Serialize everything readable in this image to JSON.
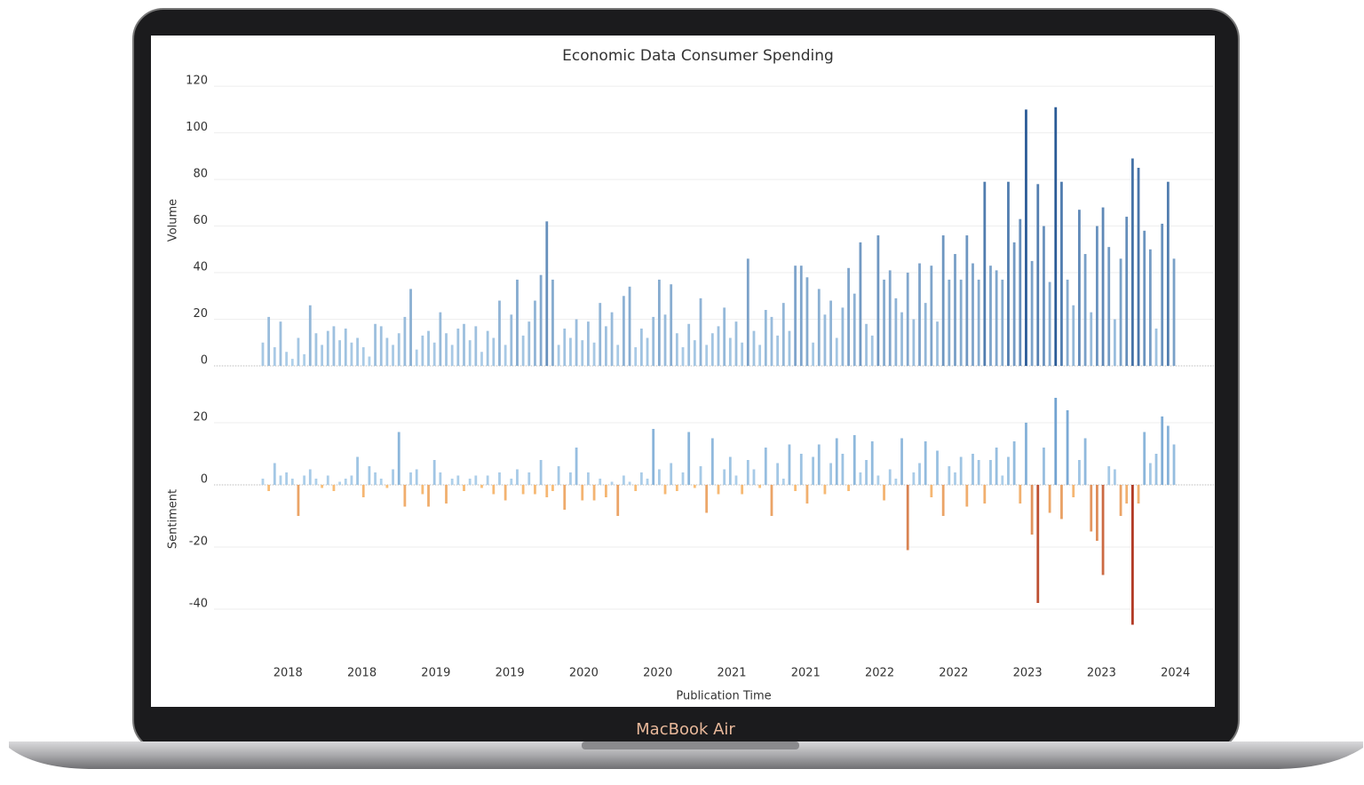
{
  "device_label": "MacBook Air",
  "chart_data": {
    "type": "bar",
    "title": "Economic Data  Consumer Spending",
    "xlabel": "Publication Time",
    "xlim": [
      2017.5,
      2024.26
    ],
    "xticks": [
      {
        "value": 2018.0,
        "label": "2018"
      },
      {
        "value": 2018.5,
        "label": "2018"
      },
      {
        "value": 2019.0,
        "label": "2019"
      },
      {
        "value": 2019.5,
        "label": "2019"
      },
      {
        "value": 2020.0,
        "label": "2020"
      },
      {
        "value": 2020.5,
        "label": "2020"
      },
      {
        "value": 2021.0,
        "label": "2021"
      },
      {
        "value": 2021.5,
        "label": "2021"
      },
      {
        "value": 2022.0,
        "label": "2022"
      },
      {
        "value": 2022.5,
        "label": "2022"
      },
      {
        "value": 2023.0,
        "label": "2023"
      },
      {
        "value": 2023.5,
        "label": "2023"
      },
      {
        "value": 2024.0,
        "label": "2024"
      }
    ],
    "x": [
      2017.83,
      2017.87,
      2017.91,
      2017.95,
      2017.99,
      2018.03,
      2018.07,
      2018.11,
      2018.15,
      2018.19,
      2018.23,
      2018.27,
      2018.31,
      2018.35,
      2018.39,
      2018.43,
      2018.47,
      2018.51,
      2018.55,
      2018.59,
      2018.63,
      2018.67,
      2018.71,
      2018.75,
      2018.79,
      2018.83,
      2018.87,
      2018.91,
      2018.95,
      2018.99,
      2019.03,
      2019.07,
      2019.11,
      2019.15,
      2019.19,
      2019.23,
      2019.27,
      2019.31,
      2019.35,
      2019.39,
      2019.43,
      2019.47,
      2019.51,
      2019.55,
      2019.59,
      2019.63,
      2019.67,
      2019.71,
      2019.75,
      2019.79,
      2019.83,
      2019.87,
      2019.91,
      2019.95,
      2019.99,
      2020.03,
      2020.07,
      2020.11,
      2020.15,
      2020.19,
      2020.23,
      2020.27,
      2020.31,
      2020.35,
      2020.39,
      2020.43,
      2020.47,
      2020.51,
      2020.55,
      2020.59,
      2020.63,
      2020.67,
      2020.71,
      2020.75,
      2020.79,
      2020.83,
      2020.87,
      2020.91,
      2020.95,
      2020.99,
      2021.03,
      2021.07,
      2021.11,
      2021.15,
      2021.19,
      2021.23,
      2021.27,
      2021.31,
      2021.35,
      2021.39,
      2021.43,
      2021.47,
      2021.51,
      2021.55,
      2021.59,
      2021.63,
      2021.67,
      2021.71,
      2021.75,
      2021.79,
      2021.83,
      2021.87,
      2021.91,
      2021.95,
      2021.99,
      2022.03,
      2022.07,
      2022.11,
      2022.15,
      2022.19,
      2022.23,
      2022.27,
      2022.31,
      2022.35,
      2022.39,
      2022.43,
      2022.47,
      2022.51,
      2022.55,
      2022.59,
      2022.63,
      2022.67,
      2022.71,
      2022.75,
      2022.79,
      2022.83,
      2022.87,
      2022.91,
      2022.95,
      2022.99,
      2023.03,
      2023.07,
      2023.11,
      2023.15,
      2023.19,
      2023.23,
      2023.27,
      2023.31,
      2023.35,
      2023.39,
      2023.43,
      2023.47,
      2023.51,
      2023.55,
      2023.59,
      2023.63,
      2023.67,
      2023.71,
      2023.75,
      2023.79,
      2023.83,
      2023.87,
      2023.91,
      2023.95,
      2023.99
    ],
    "panels": [
      {
        "ylabel": "Volume",
        "ylim": [
          0,
          125
        ],
        "yticks": [
          0,
          20,
          40,
          60,
          80,
          100,
          120
        ],
        "grid": true,
        "colors": {
          "low": "#b3d3ec",
          "high": "#2a5a96"
        },
        "values": [
          10,
          21,
          8,
          19,
          6,
          3,
          12,
          5,
          26,
          14,
          9,
          15,
          17,
          11,
          16,
          10,
          12,
          8,
          4,
          18,
          17,
          12,
          9,
          14,
          21,
          33,
          7,
          13,
          15,
          10,
          23,
          14,
          9,
          16,
          18,
          11,
          17,
          6,
          15,
          12,
          28,
          9,
          22,
          37,
          13,
          19,
          28,
          39,
          62,
          37,
          9,
          16,
          12,
          20,
          11,
          19,
          10,
          27,
          17,
          23,
          9,
          30,
          34,
          8,
          16,
          12,
          21,
          37,
          22,
          35,
          14,
          8,
          18,
          11,
          29,
          9,
          14,
          17,
          25,
          12,
          19,
          10,
          46,
          15,
          9,
          24,
          21,
          13,
          27,
          15,
          43,
          43,
          38,
          10,
          33,
          22,
          28,
          12,
          25,
          42,
          31,
          53,
          18,
          13,
          56,
          37,
          41,
          29,
          23,
          40,
          20,
          44,
          27,
          43,
          19,
          56,
          37,
          48,
          37,
          56,
          44,
          37,
          79,
          43,
          41,
          37,
          79,
          53,
          63,
          110,
          45,
          78,
          60,
          36,
          111,
          79,
          37,
          26,
          67,
          48,
          23,
          60,
          68,
          51,
          20,
          46,
          64,
          89,
          85,
          58,
          50,
          16,
          61,
          79,
          46
        ]
      },
      {
        "ylabel": "Sentiment",
        "ylim": [
          -52,
          30
        ],
        "yticks": [
          -40,
          -20,
          0,
          20
        ],
        "grid": true,
        "colors": {
          "low": "#b3d3ec",
          "high": "#4a86c0",
          "neg_low": "#fbc27a",
          "neg_high": "#b23a25"
        },
        "values": [
          2,
          -2,
          7,
          3,
          4,
          2,
          -10,
          3,
          5,
          2,
          -1,
          3,
          -2,
          1,
          2,
          3,
          9,
          -4,
          6,
          4,
          2,
          -1,
          5,
          17,
          -7,
          4,
          5,
          -3,
          -7,
          8,
          4,
          -6,
          2,
          3,
          -2,
          2,
          3,
          -1,
          3,
          -3,
          4,
          -5,
          2,
          5,
          -3,
          4,
          -3,
          8,
          -4,
          -2,
          6,
          -8,
          4,
          12,
          -5,
          4,
          -5,
          2,
          -4,
          1,
          -10,
          3,
          1,
          -2,
          4,
          2,
          18,
          5,
          -3,
          7,
          -2,
          4,
          17,
          -1,
          6,
          -9,
          15,
          -3,
          5,
          9,
          3,
          -3,
          8,
          5,
          -1,
          12,
          -10,
          7,
          2,
          13,
          -2,
          10,
          -6,
          9,
          13,
          -3,
          7,
          15,
          10,
          -2,
          16,
          4,
          8,
          14,
          3,
          -5,
          5,
          2,
          15,
          -21,
          4,
          7,
          14,
          -4,
          11,
          -10,
          6,
          4,
          9,
          -7,
          10,
          8,
          -6,
          8,
          12,
          3,
          9,
          14,
          -6,
          20,
          -16,
          -38,
          12,
          -9,
          28,
          -11,
          24,
          -4,
          8,
          15,
          -15,
          -18,
          -29,
          6,
          5,
          -10,
          -6,
          -45,
          -6,
          17,
          7,
          10,
          22,
          19,
          13
        ]
      }
    ]
  }
}
